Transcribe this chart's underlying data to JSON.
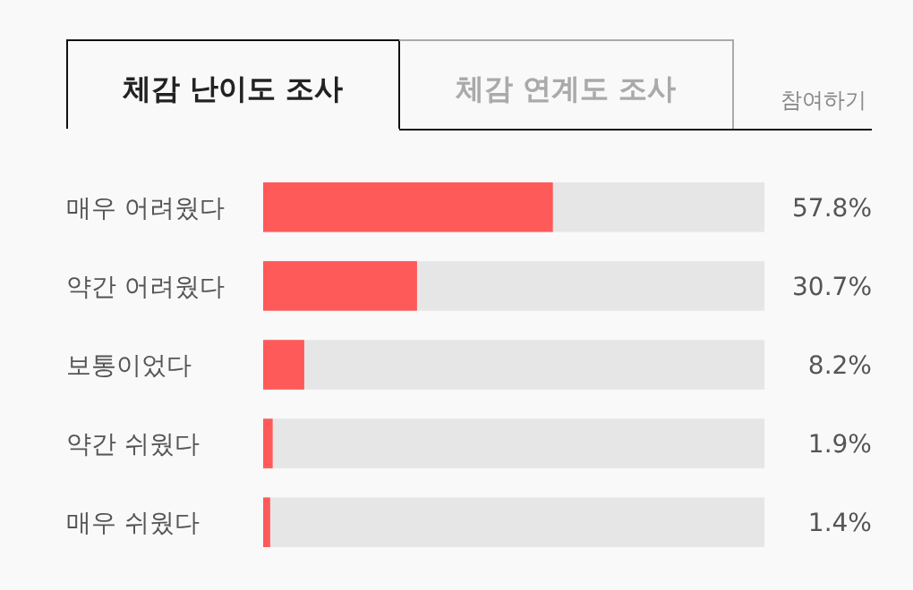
{
  "chart_data": {
    "type": "bar",
    "orientation": "horizontal",
    "title": "체감 난이도 조사",
    "annotations": [
      "체감 연계도 조사",
      "참여하기"
    ],
    "categories": [
      "매우 어려웠다",
      "약간 어려웠다",
      "보통이었다",
      "약간 쉬웠다",
      "매우 쉬웠다"
    ],
    "values": [
      57.8,
      30.7,
      8.2,
      1.9,
      1.4
    ],
    "value_labels": [
      "57.8%",
      "30.7%",
      "8.2%",
      "1.9%",
      "1.4%"
    ],
    "color": "#ff5a5a",
    "xlim": [
      0,
      100
    ],
    "tick_labels": "y"
  }
}
